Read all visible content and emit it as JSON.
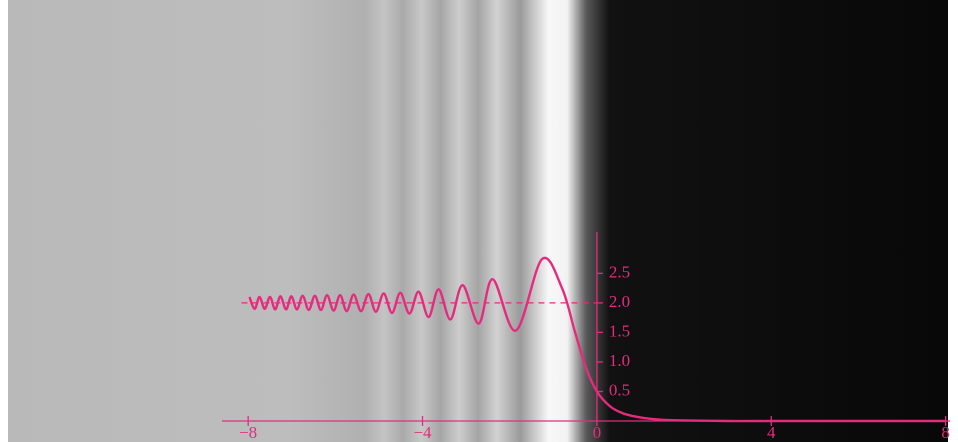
{
  "chart_data": {
    "type": "line",
    "x": [
      -7.97,
      -7.85,
      -7.74,
      -7.62,
      -7.5,
      -7.38,
      -7.26,
      -7.13,
      -7.01,
      -6.88,
      -6.75,
      -6.61,
      -6.47,
      -6.33,
      -6.19,
      -6.04,
      -5.89,
      -5.74,
      -5.58,
      -5.41,
      -5.24,
      -5.07,
      -4.89,
      -4.7,
      -4.51,
      -4.3,
      -4.09,
      -3.86,
      -3.63,
      -3.36,
      -3.08,
      -2.71,
      -2.39,
      -1.86,
      -1.26,
      -0.8,
      -0.5,
      -0.25,
      0,
      0.3,
      0.6,
      1,
      1.5,
      2,
      3,
      4,
      6,
      8
    ],
    "values": [
      2.1,
      1.9,
      2.1,
      1.9,
      2.1,
      1.89,
      2.11,
      1.89,
      2.11,
      1.89,
      2.12,
      1.88,
      2.12,
      1.88,
      2.13,
      1.87,
      2.13,
      1.86,
      2.14,
      1.86,
      2.15,
      1.85,
      2.16,
      1.83,
      2.17,
      1.82,
      2.19,
      1.76,
      2.23,
      1.72,
      2.3,
      1.65,
      2.4,
      1.53,
      2.74,
      2.25,
      1.5,
      0.9,
      0.5,
      0.25,
      0.13,
      0.06,
      0.02,
      0.01,
      0,
      0,
      0,
      0
    ],
    "color": "#e52b7e",
    "reference_line": 2,
    "xlim": [
      -8.6,
      8.1
    ],
    "xticks": [
      {
        "value": -8,
        "label": "−8"
      },
      {
        "value": -4,
        "label": "−4"
      },
      0,
      4,
      8
    ],
    "ylim": [
      0,
      3.2
    ],
    "yticks": [
      0.5,
      {
        "value": 1,
        "label": "1.0"
      },
      1.5,
      {
        "value": 2,
        "label": "2.0"
      },
      2.5
    ]
  }
}
